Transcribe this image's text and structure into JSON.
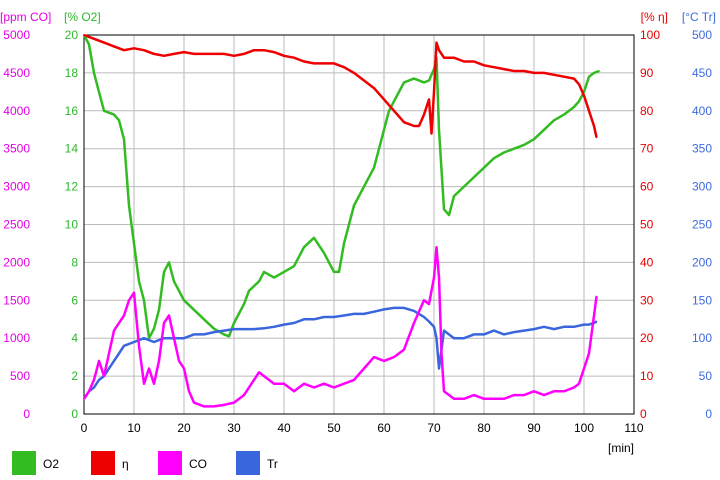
{
  "chart_data": {
    "type": "line",
    "xlabel": "[min]",
    "xlim": [
      0,
      110
    ],
    "x_ticks": [
      0,
      10,
      20,
      30,
      40,
      50,
      60,
      70,
      80,
      90,
      100,
      110
    ],
    "grid": true,
    "legend_position": "bottom",
    "axes": [
      {
        "id": "co",
        "label": "[ppm CO]",
        "side": "left",
        "range": [
          0,
          5000
        ],
        "ticks": [
          0,
          500,
          1000,
          1500,
          2000,
          2500,
          3000,
          3500,
          4000,
          4500,
          5000
        ],
        "color": "#e600e6"
      },
      {
        "id": "o2",
        "label": "[% O2]",
        "side": "left",
        "range": [
          0,
          20
        ],
        "ticks": [
          0,
          2,
          4,
          6,
          8,
          10,
          12,
          14,
          16,
          18,
          20
        ],
        "color": "#2db82d"
      },
      {
        "id": "eta",
        "label": "[% η]",
        "side": "right",
        "range": [
          0,
          100
        ],
        "ticks": [
          0,
          10,
          20,
          30,
          40,
          50,
          60,
          70,
          80,
          90,
          100
        ],
        "color": "#e60000"
      },
      {
        "id": "tr",
        "label": "[°C Tr]",
        "side": "right",
        "range": [
          0,
          500
        ],
        "ticks": [
          0,
          50,
          100,
          150,
          200,
          250,
          300,
          350,
          400,
          450,
          500
        ],
        "color": "#3d6bdc"
      }
    ],
    "series": [
      {
        "name": "O2",
        "axis": "o2",
        "color": "#33bb22",
        "x": [
          0,
          1,
          2,
          3,
          4,
          6,
          7,
          8,
          9,
          10,
          11,
          12,
          13,
          14,
          15,
          16,
          17,
          18,
          19,
          20,
          22,
          24,
          26,
          28,
          29,
          30,
          32,
          33,
          35,
          36,
          38,
          40,
          42,
          44,
          46,
          48,
          50,
          51,
          52,
          54,
          56,
          58,
          60,
          61,
          62,
          64,
          66,
          68,
          69,
          70,
          70.5,
          71,
          72,
          73,
          74,
          76,
          78,
          80,
          82,
          84,
          86,
          88,
          90,
          92,
          94,
          96,
          98,
          99,
          100,
          101,
          102,
          103
        ],
        "y": [
          20,
          19.5,
          18,
          17,
          16,
          15.8,
          15.5,
          14.5,
          11,
          9,
          7,
          6,
          4,
          4.5,
          5.5,
          7.5,
          8,
          7,
          6.5,
          6,
          5.5,
          5,
          4.5,
          4.2,
          4.1,
          4.8,
          5.8,
          6.5,
          7,
          7.5,
          7.2,
          7.5,
          7.8,
          8.8,
          9.3,
          8.5,
          7.5,
          7.5,
          9,
          11,
          12,
          13,
          15,
          16,
          16.5,
          17.5,
          17.7,
          17.5,
          17.6,
          18.2,
          18.8,
          15,
          10.8,
          10.5,
          11.5,
          12,
          12.5,
          13,
          13.5,
          13.8,
          14,
          14.2,
          14.5,
          15,
          15.5,
          15.8,
          16.2,
          16.5,
          17,
          17.8,
          18,
          18.1
        ]
      },
      {
        "name": "η",
        "axis": "eta",
        "color": "#ee0000",
        "x": [
          0,
          2,
          4,
          6,
          8,
          10,
          12,
          14,
          16,
          18,
          20,
          22,
          24,
          26,
          28,
          30,
          32,
          34,
          36,
          38,
          40,
          42,
          44,
          46,
          48,
          50,
          52,
          54,
          56,
          58,
          60,
          62,
          64,
          66,
          67,
          68,
          69,
          69.5,
          70,
          70.5,
          71,
          72,
          74,
          76,
          78,
          80,
          82,
          84,
          86,
          88,
          90,
          92,
          94,
          96,
          98,
          99,
          100,
          101,
          102,
          102.5
        ],
        "y": [
          100,
          99,
          98,
          97,
          96,
          96.5,
          96,
          95,
          94.5,
          95,
          95.5,
          95,
          95,
          95,
          95,
          94.5,
          95,
          96,
          96,
          95.5,
          94.5,
          94,
          93,
          92.5,
          92.5,
          92.5,
          91.5,
          90,
          88,
          86,
          83,
          80,
          77,
          76,
          76,
          79,
          83,
          74,
          85,
          98,
          96,
          94,
          94,
          93,
          93,
          92,
          91.5,
          91,
          90.5,
          90.5,
          90,
          90,
          89.5,
          89,
          88.5,
          87,
          84,
          80,
          76,
          73
        ]
      },
      {
        "name": "CO",
        "axis": "co",
        "color": "#ff00ff",
        "x": [
          0,
          1,
          2,
          3,
          4,
          5,
          6,
          7,
          8,
          9,
          10,
          11,
          12,
          13,
          14,
          15,
          16,
          17,
          18,
          19,
          20,
          21,
          22,
          24,
          26,
          28,
          30,
          32,
          34,
          35,
          36,
          38,
          40,
          42,
          44,
          46,
          48,
          50,
          52,
          54,
          56,
          58,
          60,
          62,
          64,
          66,
          68,
          69,
          70,
          70.5,
          71,
          71.5,
          72,
          74,
          76,
          78,
          80,
          82,
          84,
          86,
          88,
          90,
          92,
          94,
          96,
          98,
          99,
          100,
          101,
          102,
          102.5
        ],
        "y": [
          200,
          300,
          450,
          700,
          500,
          800,
          1100,
          1200,
          1300,
          1500,
          1600,
          900,
          400,
          600,
          400,
          700,
          1200,
          1300,
          1000,
          700,
          600,
          300,
          150,
          100,
          100,
          120,
          150,
          250,
          450,
          550,
          500,
          400,
          400,
          300,
          400,
          350,
          400,
          350,
          400,
          450,
          600,
          750,
          700,
          750,
          850,
          1200,
          1500,
          1450,
          1800,
          2200,
          1800,
          800,
          300,
          200,
          200,
          250,
          200,
          200,
          200,
          250,
          250,
          300,
          250,
          300,
          300,
          350,
          400,
          600,
          800,
          1300,
          1550
        ]
      },
      {
        "name": "Tr",
        "axis": "tr",
        "color": "#3a66dd",
        "x": [
          0,
          1,
          2,
          3,
          4,
          5,
          6,
          7,
          8,
          10,
          12,
          14,
          16,
          18,
          20,
          22,
          24,
          26,
          28,
          30,
          32,
          34,
          36,
          38,
          40,
          42,
          44,
          46,
          48,
          50,
          52,
          54,
          56,
          58,
          60,
          62,
          64,
          65,
          66,
          67,
          68,
          69,
          70,
          70.5,
          71,
          72,
          74,
          76,
          78,
          80,
          82,
          84,
          86,
          88,
          90,
          92,
          94,
          96,
          98,
          100,
          101,
          102,
          102.5
        ],
        "y": [
          20,
          30,
          35,
          45,
          50,
          60,
          70,
          80,
          90,
          95,
          100,
          95,
          100,
          100,
          100,
          105,
          105,
          108,
          110,
          112,
          112,
          112,
          113,
          115,
          118,
          120,
          125,
          125,
          128,
          128,
          130,
          132,
          132,
          135,
          138,
          140,
          140,
          138,
          136,
          132,
          128,
          122,
          115,
          100,
          60,
          110,
          100,
          100,
          105,
          105,
          110,
          105,
          108,
          110,
          112,
          115,
          112,
          115,
          115,
          118,
          118,
          120,
          122
        ]
      }
    ]
  }
}
